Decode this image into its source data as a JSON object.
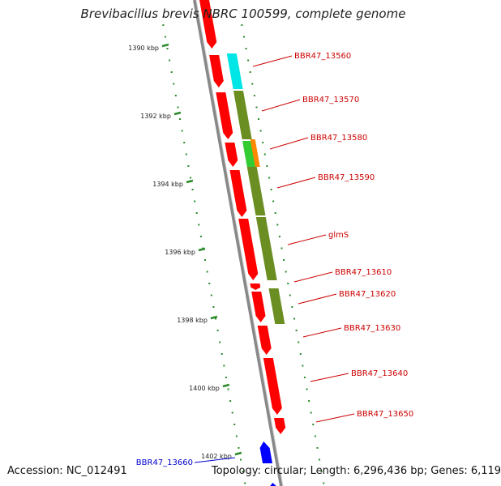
{
  "title": "Brevibacillus brevis NBRC 100599, complete genome",
  "accession": "Accession: NC_012491",
  "summary": "Topology: circular; Length: 6,296,436 bp; Genes: 6,119",
  "colors": {
    "backbone": "#888888",
    "gene_forward": "#ff0000",
    "gene_reverse": "#0000ff",
    "tick": "#2a8a2a",
    "cog_cyan": "#00e5e5",
    "cog_olive": "#6b8e23",
    "cog_green": "#33cc33",
    "cog_orange": "#ff8800",
    "label_red": "#cc0000",
    "label_blue": "#0000cc"
  },
  "scale_labels": [
    {
      "kbp": 1390,
      "text": "1390 kbp"
    },
    {
      "kbp": 1392,
      "text": "1392 kbp"
    },
    {
      "kbp": 1394,
      "text": "1394 kbp"
    },
    {
      "kbp": 1396,
      "text": "1396 kbp"
    },
    {
      "kbp": 1398,
      "text": "1398 kbp"
    },
    {
      "kbp": 1400,
      "text": "1400 kbp"
    },
    {
      "kbp": 1402,
      "text": "1402 kbp"
    }
  ],
  "genes": [
    {
      "label": "BBR47_13560",
      "color": "red"
    },
    {
      "label": "BBR47_13570",
      "color": "red"
    },
    {
      "label": "BBR47_13580",
      "color": "red"
    },
    {
      "label": "BBR47_13590",
      "color": "red"
    },
    {
      "label": "glmS",
      "color": "red"
    },
    {
      "label": "BBR47_13610",
      "color": "red"
    },
    {
      "label": "BBR47_13620",
      "color": "red"
    },
    {
      "label": "BBR47_13630",
      "color": "red"
    },
    {
      "label": "BBR47_13640",
      "color": "red"
    },
    {
      "label": "BBR47_13650",
      "color": "red"
    },
    {
      "label": "BBR47_13660",
      "color": "blue"
    }
  ]
}
